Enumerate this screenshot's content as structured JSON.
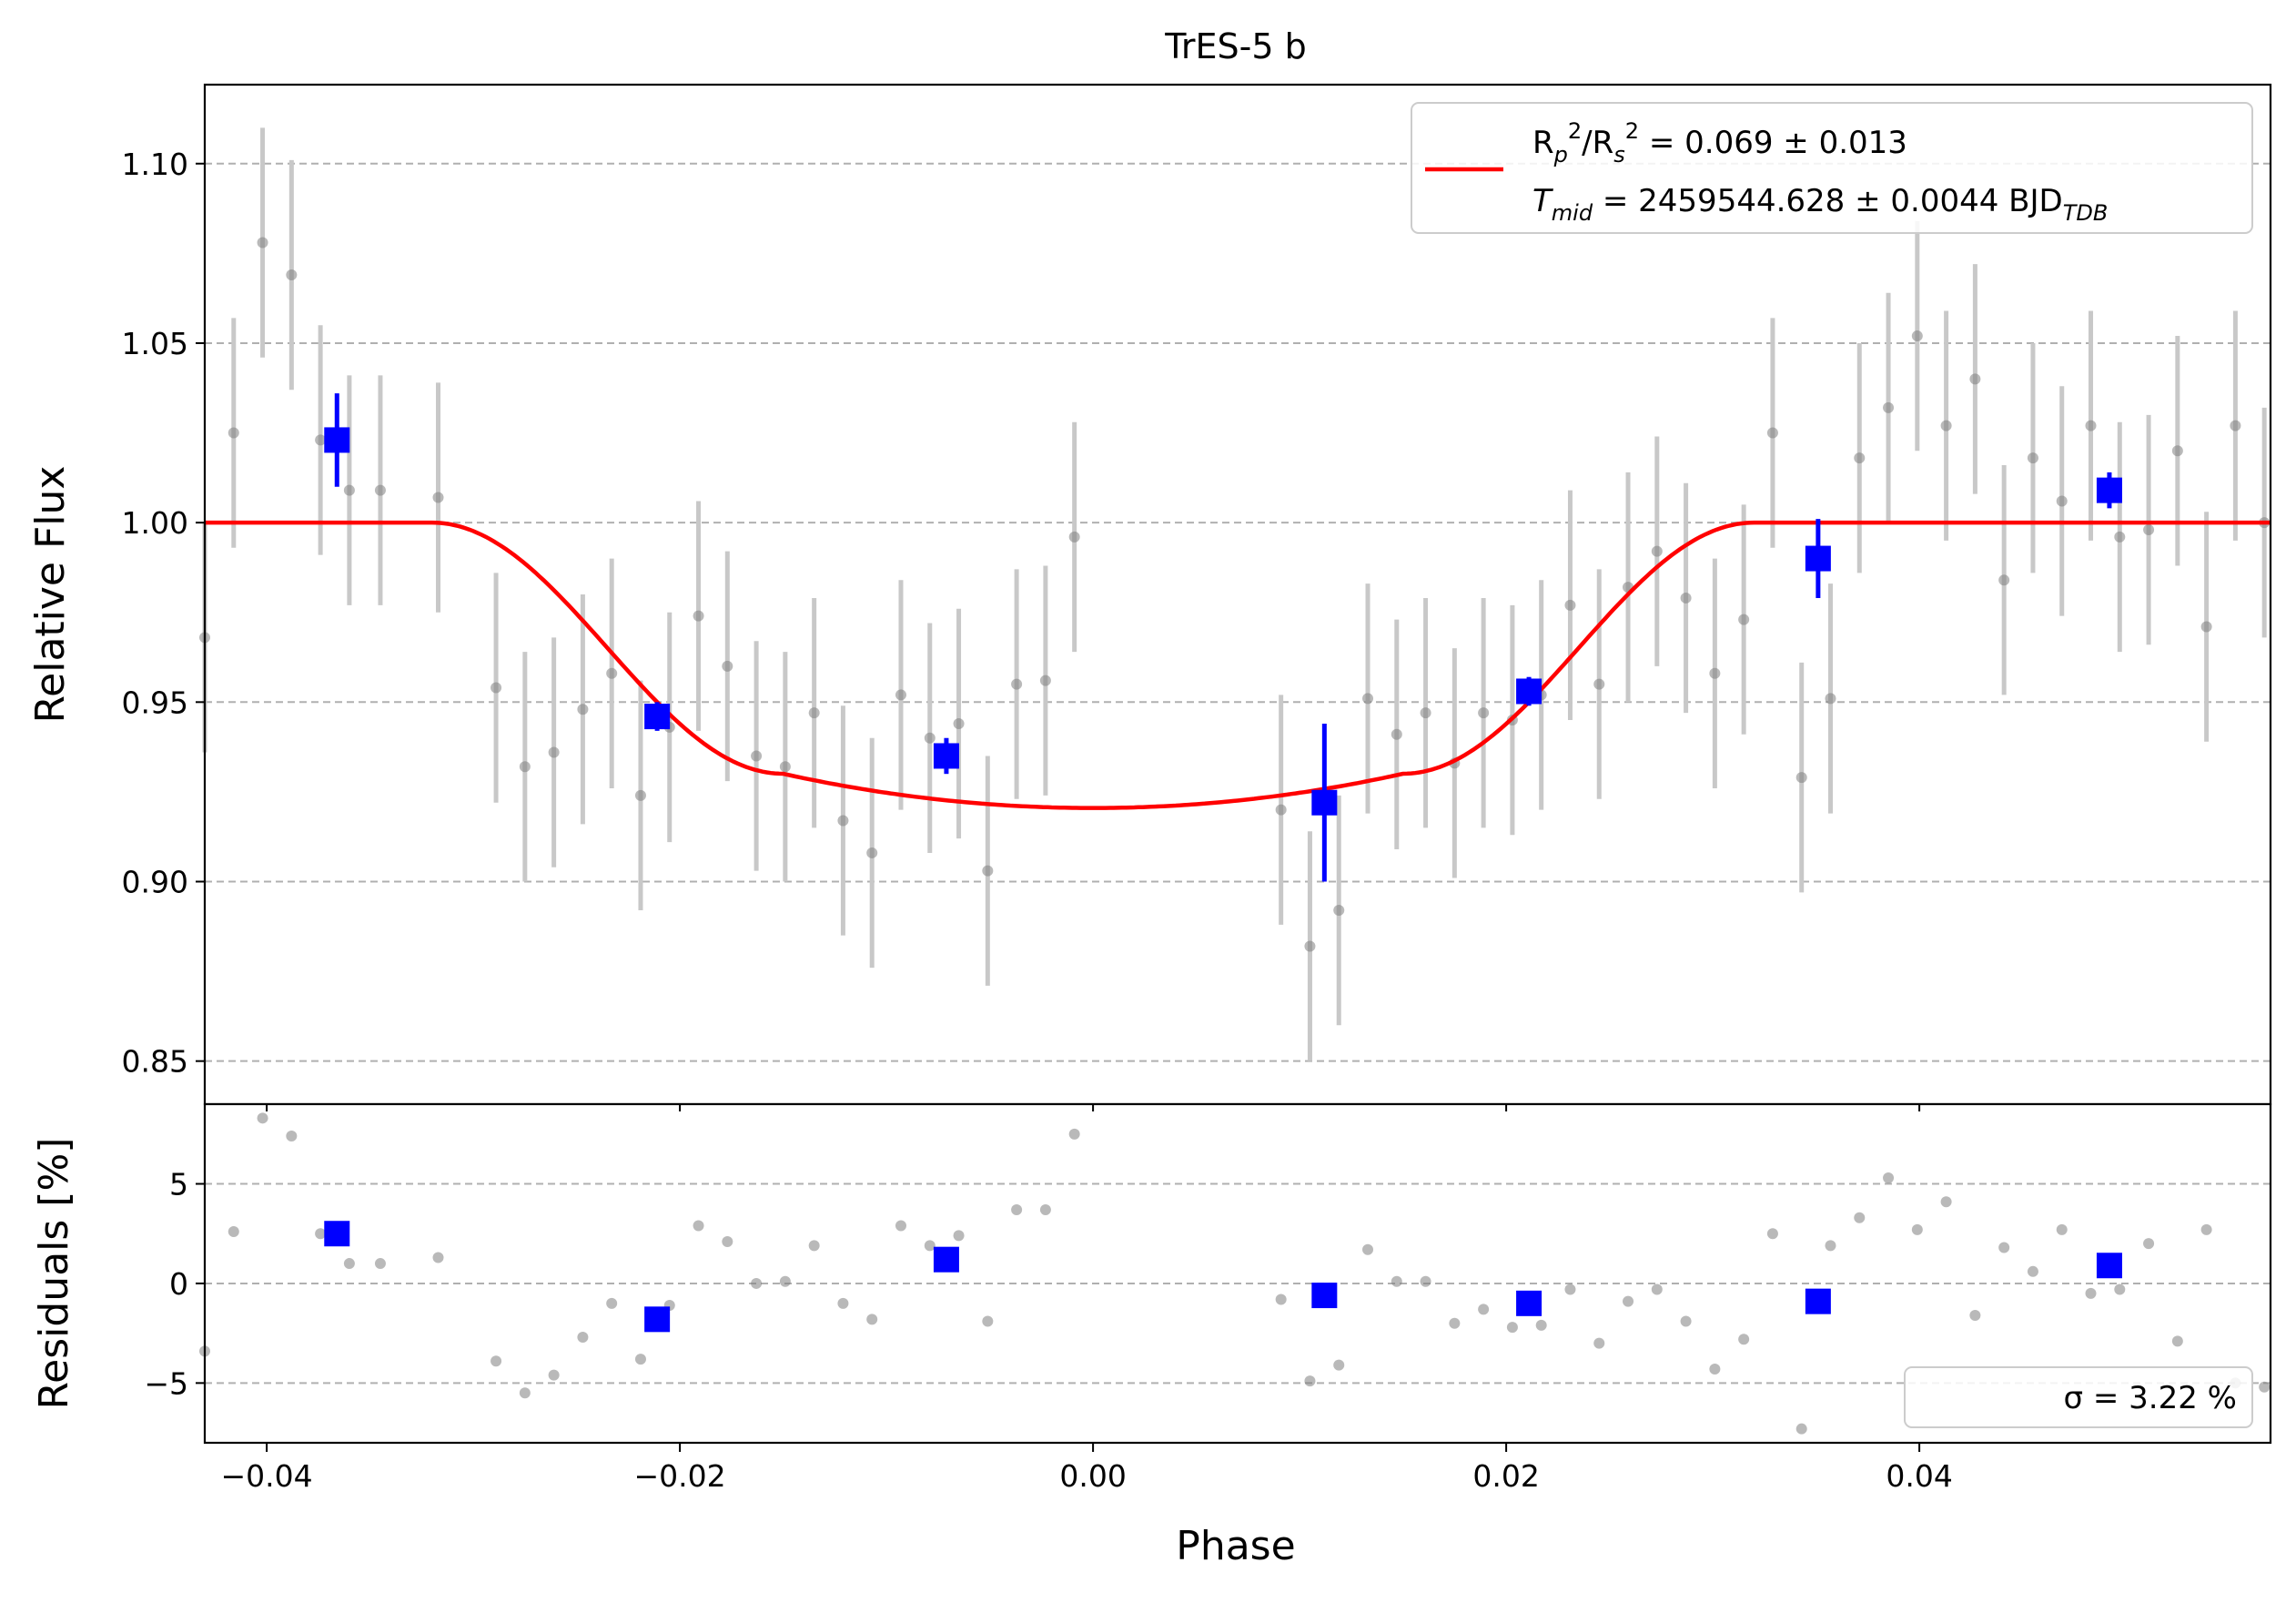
{
  "chart_data": {
    "type": "scatter",
    "title": "TrES-5 b",
    "xlabel": "Phase",
    "ylabel_top": "Relative Flux",
    "ylabel_bottom": "Residuals [%]",
    "xlim": [
      -0.043,
      0.057
    ],
    "ylim_top": [
      0.838,
      1.122
    ],
    "ylim_bottom": [
      -8,
      9
    ],
    "grid": "horizontal-dashed",
    "x_ticks": [
      -0.04,
      -0.02,
      0.0,
      0.02,
      0.04
    ],
    "x_tick_labels": [
      "−0.04",
      "−0.02",
      "0.00",
      "0.02",
      "0.04"
    ],
    "y_ticks_top": [
      0.85,
      0.9,
      0.95,
      1.0,
      1.05,
      1.1
    ],
    "y_tick_labels_top": [
      "0.85",
      "0.90",
      "0.95",
      "1.00",
      "1.05",
      "1.10"
    ],
    "y_ticks_bottom": [
      -5,
      0,
      5
    ],
    "y_tick_labels_bottom": [
      "−5",
      "0",
      "5"
    ],
    "colors": {
      "raw": "#808080",
      "errorbar": "#c8c8c8",
      "binned": "#0000ff",
      "model": "#ff0000"
    },
    "legend_top": {
      "placement": "upper-right",
      "line1": "Rp2/Rs2 = 0.069 ± 0.013",
      "line2": "Tmid = 2459544.628 ± 0.0044 BJDTDB"
    },
    "legend_bottom": {
      "placement": "lower-right",
      "text": "σ = 3.22 %"
    },
    "model": {
      "name": "transit model",
      "baseline": 1.0,
      "depth_min": 0.9205,
      "t1": -0.032,
      "t2": -0.015,
      "t3": 0.015,
      "t4": 0.032
    },
    "raw": {
      "x": [
        -0.043,
        -0.0416,
        -0.0402,
        -0.0388,
        -0.0374,
        -0.036,
        -0.0345,
        -0.0317,
        -0.0289,
        -0.0275,
        -0.0261,
        -0.0247,
        -0.0233,
        -0.0219,
        -0.0205,
        -0.0191,
        -0.0177,
        -0.0163,
        -0.0149,
        -0.0135,
        -0.0121,
        -0.0107,
        -0.0093,
        -0.0079,
        -0.0065,
        -0.0051,
        -0.0037,
        -0.0023,
        -0.0009,
        0.0091,
        0.0105,
        0.0119,
        0.0133,
        0.0147,
        0.0161,
        0.0175,
        0.0189,
        0.0203,
        0.0217,
        0.0231,
        0.0245,
        0.0259,
        0.0273,
        0.0287,
        0.0301,
        0.0315,
        0.0329,
        0.0343,
        0.0357,
        0.0371,
        0.0385,
        0.0399,
        0.0413,
        0.0427,
        0.0441,
        0.0455,
        0.0469,
        0.0483,
        0.0497,
        0.0511,
        0.0525,
        0.0539,
        0.0553,
        0.0567
      ],
      "y": [
        0.968,
        1.025,
        1.078,
        1.069,
        1.023,
        1.009,
        1.009,
        1.007,
        0.954,
        0.932,
        0.936,
        0.948,
        0.958,
        0.924,
        0.943,
        0.974,
        0.96,
        0.935,
        0.932,
        0.947,
        0.917,
        0.908,
        0.952,
        0.94,
        0.944,
        0.903,
        0.955,
        0.956,
        0.996,
        0.92,
        0.882,
        0.892,
        0.951,
        0.941,
        0.947,
        0.933,
        0.947,
        0.945,
        0.952,
        0.977,
        0.955,
        0.982,
        0.992,
        0.979,
        0.958,
        0.973,
        1.025,
        0.929,
        0.951,
        1.018,
        1.032,
        1.052,
        1.027,
        1.04,
        0.984,
        1.018,
        1.006,
        1.027,
        0.996,
        0.998,
        1.02,
        0.971,
        1.027,
        1.0
      ],
      "yerr": 0.032,
      "residuals": [
        -3.4,
        2.6,
        8.3,
        7.4,
        2.5,
        1.0,
        1.0,
        1.3,
        -3.9,
        -5.5,
        -4.6,
        -2.7,
        -1.0,
        -3.8,
        -1.1,
        2.9,
        2.1,
        0.0,
        0.1,
        1.9,
        -1.0,
        -1.8,
        2.9,
        1.9,
        2.4,
        -1.9,
        3.7,
        3.7,
        7.5,
        -0.8,
        -4.9,
        -4.1,
        1.7,
        0.1,
        0.1,
        -2.0,
        -1.3,
        -2.2,
        -2.1,
        -0.3,
        -3.0,
        -0.9,
        -0.3,
        -1.9,
        -4.3,
        -2.8,
        2.5,
        -7.3,
        1.9,
        3.3,
        5.3,
        2.7,
        4.1,
        -1.6,
        1.8,
        0.6,
        2.7,
        -0.5,
        -0.3,
        2.0,
        -2.9,
        2.7,
        -5.0,
        -5.2
      ]
    },
    "binned": {
      "x": [
        -0.0366,
        -0.0211,
        -0.0071,
        0.0112,
        0.0211,
        0.0351,
        0.0492
      ],
      "y": [
        1.023,
        0.946,
        0.935,
        0.922,
        0.953,
        0.99,
        1.009
      ],
      "yerr": [
        0.013,
        0.004,
        0.005,
        0.022,
        0.004,
        0.011,
        0.005
      ],
      "residuals": [
        2.5,
        -1.8,
        1.2,
        -0.6,
        -1.0,
        -0.9,
        0.9
      ]
    }
  }
}
